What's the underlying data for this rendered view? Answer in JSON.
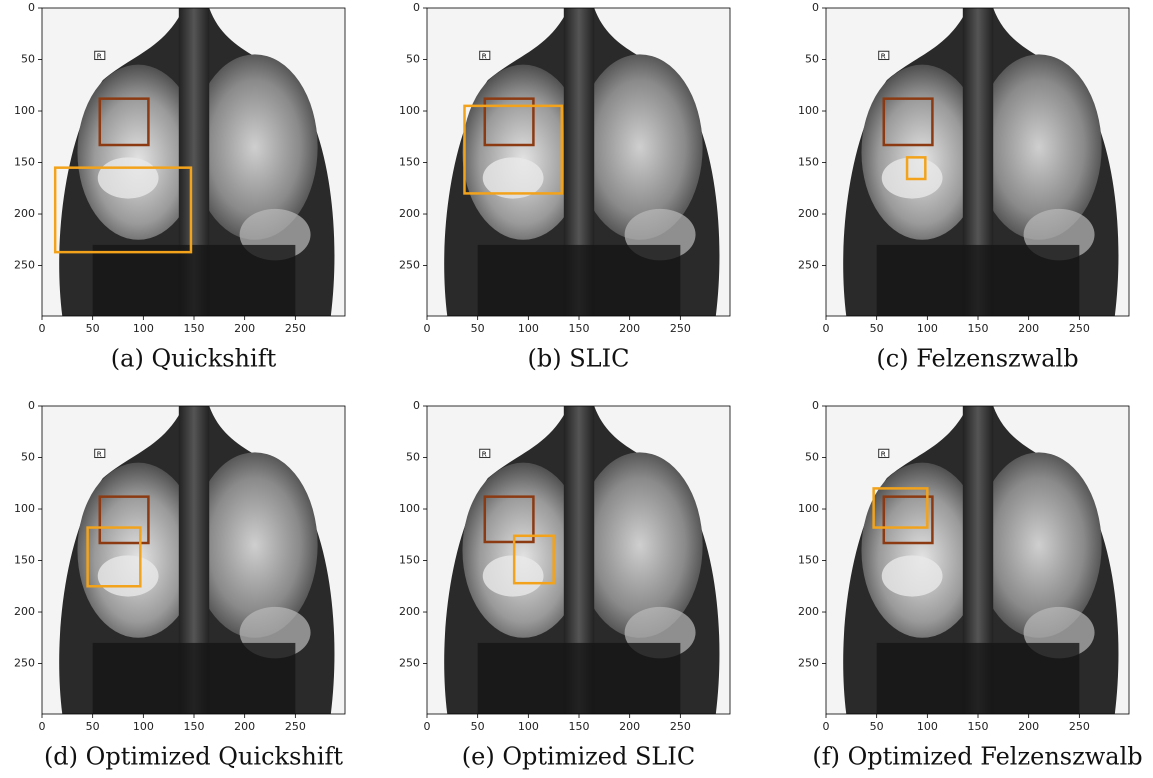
{
  "figure": {
    "panels": [
      {
        "caption": "(a) Quickshift",
        "xlim": [
          0,
          299
        ],
        "ylim": [
          299,
          0
        ],
        "xticks": [
          0,
          50,
          100,
          150,
          200,
          250
        ],
        "yticks": [
          0,
          50,
          100,
          150,
          200,
          250
        ],
        "ground_truth_box": [
          57,
          88,
          105,
          133
        ],
        "explanation_box": [
          13,
          155,
          147,
          237
        ]
      },
      {
        "caption": "(b) SLIC",
        "xlim": [
          0,
          299
        ],
        "ylim": [
          299,
          0
        ],
        "xticks": [
          0,
          50,
          100,
          150,
          200,
          250
        ],
        "yticks": [
          0,
          50,
          100,
          150,
          200,
          250
        ],
        "ground_truth_box": [
          57,
          88,
          105,
          133
        ],
        "explanation_box": [
          37,
          95,
          133,
          180
        ]
      },
      {
        "caption": "(c) Felzenszwalb",
        "xlim": [
          0,
          299
        ],
        "ylim": [
          299,
          0
        ],
        "xticks": [
          0,
          50,
          100,
          150,
          200,
          250
        ],
        "yticks": [
          0,
          50,
          100,
          150,
          200,
          250
        ],
        "ground_truth_box": [
          57,
          88,
          105,
          133
        ],
        "explanation_box": [
          80,
          145,
          98,
          166
        ]
      },
      {
        "caption": "(d) Optimized Quickshift",
        "xlim": [
          0,
          299
        ],
        "ylim": [
          299,
          0
        ],
        "xticks": [
          0,
          50,
          100,
          150,
          200,
          250
        ],
        "yticks": [
          0,
          50,
          100,
          150,
          200,
          250
        ],
        "ground_truth_box": [
          57,
          88,
          105,
          133
        ],
        "explanation_box": [
          45,
          118,
          97,
          175
        ]
      },
      {
        "caption": "(e) Optimized SLIC",
        "xlim": [
          0,
          299
        ],
        "ylim": [
          299,
          0
        ],
        "xticks": [
          0,
          50,
          100,
          150,
          200,
          250
        ],
        "yticks": [
          0,
          50,
          100,
          150,
          200,
          250
        ],
        "ground_truth_box": [
          57,
          88,
          105,
          132
        ],
        "explanation_box": [
          86,
          126,
          125,
          172
        ]
      },
      {
        "caption": "(f) Optimized Felzenszwalb",
        "xlim": [
          0,
          299
        ],
        "ylim": [
          299,
          0
        ],
        "xticks": [
          0,
          50,
          100,
          150,
          200,
          250
        ],
        "yticks": [
          0,
          50,
          100,
          150,
          200,
          250
        ],
        "ground_truth_box": [
          57,
          88,
          105,
          133
        ],
        "explanation_box": [
          47,
          80,
          100,
          118
        ]
      }
    ],
    "ground_truth_color": "#8b3a12",
    "explanation_color": "#f2a31b"
  }
}
